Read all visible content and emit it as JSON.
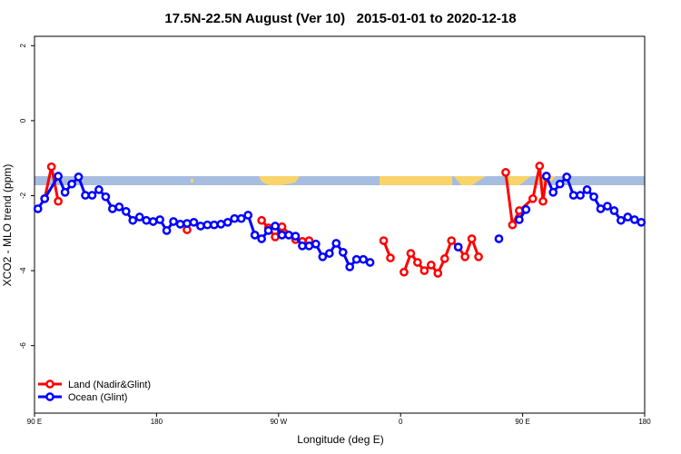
{
  "chart_data": {
    "type": "line",
    "title": "17.5N-22.5N August (Ver 10)   2015-01-01 to 2020-12-18",
    "x_label": "Longitude (deg E)",
    "y_label": "XCO2 - MLO trend (ppm)",
    "xlim": [
      90,
      540
    ],
    "ylim": [
      -7.8,
      2.25
    ],
    "xticks": [
      {
        "value": 90,
        "label": "90 E"
      },
      {
        "value": 180,
        "label": "180"
      },
      {
        "value": 270,
        "label": "90 W"
      },
      {
        "value": 360,
        "label": "0"
      },
      {
        "value": 450,
        "label": "90 E"
      },
      {
        "value": 540,
        "label": "180"
      }
    ],
    "yticks": [
      2,
      0,
      -2,
      -4,
      -6
    ],
    "legend": "bottom-left",
    "series": [
      {
        "name": "Land (Nadir&Glint)",
        "color": "#ff0000",
        "x": [
          97.5,
          102.5,
          107.5,
          112.5,
          202.5,
          207.5,
          257.5,
          262.5,
          267.5,
          272.5,
          282.5,
          287.5,
          292.5,
          297.5,
          347.5,
          352.5,
          357.5,
          362.5,
          367.5,
          372.5,
          377.5,
          382.5,
          387.5,
          392.5,
          397.5,
          402.5,
          407.5,
          412.5,
          417.5,
          422.5,
          437.5,
          442.5,
          447.5,
          457.5,
          462.5,
          465,
          467.5
        ],
        "values": [
          -2.08,
          -1.23,
          -2.15,
          null,
          -2.91,
          null,
          -2.66,
          -2.86,
          -3.1,
          -2.83,
          -3.17,
          -3.22,
          -3.2,
          null,
          -3.2,
          -3.66,
          null,
          -4.04,
          -3.54,
          -3.78,
          -4.0,
          -3.85,
          -4.07,
          -3.68,
          -3.2,
          -3.37,
          -3.63,
          -3.15,
          -3.63,
          null,
          -1.38,
          -2.78,
          -2.4,
          -2.08,
          -1.21,
          -2.15,
          -1.48
        ]
      },
      {
        "name": "Ocean (Glint)",
        "color": "#0000ff",
        "x": [
          92.5,
          97.5,
          107.5,
          112.5,
          117.5,
          122.5,
          127.5,
          132.5,
          137.5,
          142.5,
          147.5,
          152.5,
          157.5,
          162.5,
          167.5,
          172.5,
          177.5,
          182.5,
          187.5,
          192.5,
          197.5,
          202.5,
          207.5,
          212.5,
          217.5,
          222.5,
          227.5,
          232.5,
          237.5,
          242.5,
          247.5,
          252.5,
          257.5,
          262.5,
          267.5,
          272.5,
          277.5,
          282.5,
          287.5,
          292.5,
          297.5,
          302.5,
          307.5,
          312.5,
          317.5,
          322.5,
          327.5,
          332.5,
          337.5,
          342.5,
          402.5,
          407.5,
          432.5,
          437.5,
          447.5,
          452.5,
          457.5,
          467.5,
          472.5,
          477.5,
          482.5,
          487.5,
          492.5,
          497.5,
          502.5,
          507.5,
          512.5,
          517.5,
          522.5,
          527.5,
          532.5,
          537.5
        ],
        "values": [
          -2.35,
          -2.08,
          -1.48,
          -1.91,
          -1.69,
          -1.5,
          -1.99,
          -1.99,
          -1.84,
          -2.03,
          -2.35,
          -2.3,
          -2.42,
          -2.66,
          -2.57,
          -2.66,
          -2.69,
          -2.64,
          -2.93,
          -2.69,
          -2.76,
          -2.74,
          -2.71,
          -2.81,
          -2.78,
          -2.78,
          -2.76,
          -2.71,
          -2.61,
          -2.61,
          -2.52,
          -3.05,
          -3.15,
          -2.93,
          -2.81,
          -3.05,
          -3.05,
          -3.08,
          -3.34,
          -3.34,
          -3.29,
          -3.63,
          -3.54,
          -3.27,
          -3.51,
          -3.9,
          -3.7,
          -3.7,
          -3.78,
          null,
          -3.37,
          null,
          -3.15,
          null,
          -2.64,
          -2.37,
          null,
          -1.48,
          -1.91,
          -1.69,
          -1.5,
          -1.99,
          -1.99,
          -1.84,
          -2.03,
          -2.35,
          -2.28,
          -2.4,
          -2.66,
          -2.57,
          -2.64,
          -2.71
        ]
      }
    ]
  }
}
